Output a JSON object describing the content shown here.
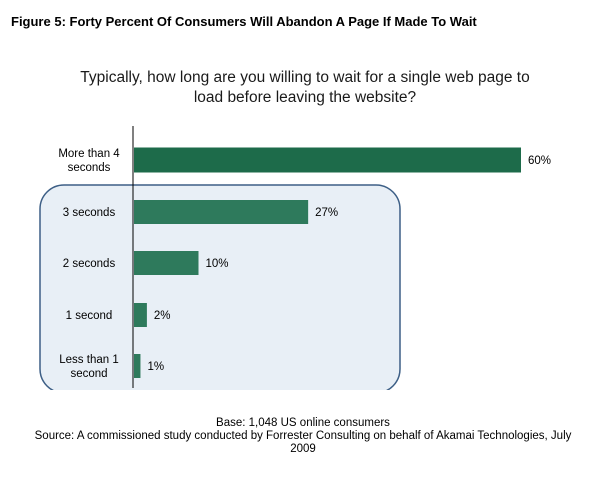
{
  "figure_title": "Figure 5: Forty Percent Of Consumers Will Abandon A Page If Made To Wait",
  "question_line1": "Typically, how long are you willing to wait for a single web page to",
  "question_line2": "load before leaving the website?",
  "footer": {
    "base": "Base: 1,048 US online consumers",
    "source_line1": "Source: A commissioned study conducted by Forrester Consulting on behalf of Akamai Technologies, July",
    "source_line2": "2009"
  },
  "colors": {
    "bar": "#2e7a5c",
    "bar_top": "#1d6b4a",
    "highlight_box_fill": "#e8eff6",
    "highlight_box_stroke": "#3d5f86"
  },
  "chart_data": {
    "type": "bar",
    "orientation": "horizontal",
    "categories": [
      [
        "More than 4",
        "seconds"
      ],
      [
        "3 seconds"
      ],
      [
        "2 seconds"
      ],
      [
        "1 second"
      ],
      [
        "Less than 1",
        "second"
      ]
    ],
    "values": [
      60,
      27,
      10,
      2,
      1
    ],
    "value_labels": [
      "60%",
      "27%",
      "10%",
      "2%",
      "1%"
    ],
    "xlim": [
      0,
      60
    ],
    "highlighted_categories": [
      1,
      2,
      3,
      4
    ]
  }
}
